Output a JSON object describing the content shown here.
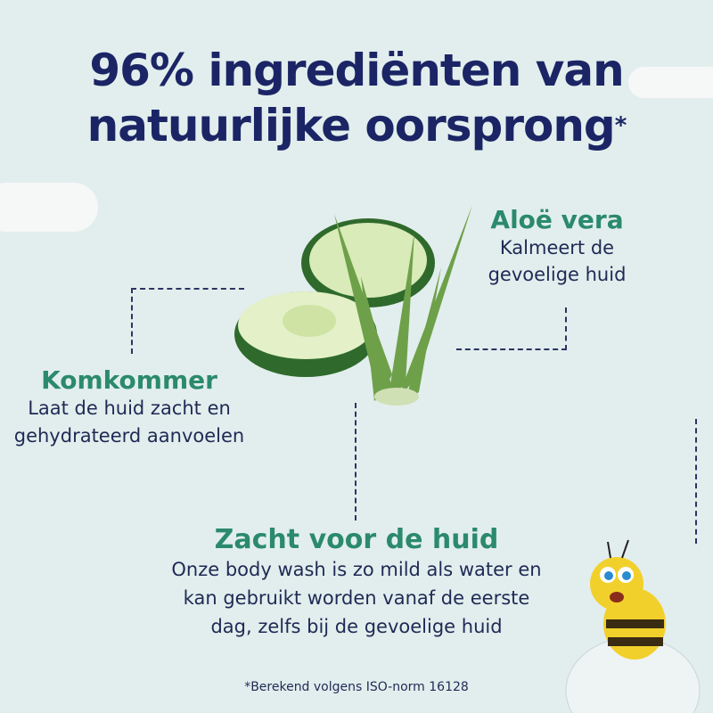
{
  "title": {
    "line1": "96% ingrediënten van",
    "line2": "natuurlijke oorsprong",
    "asterisk": "*"
  },
  "aloe": {
    "heading": "Aloë vera",
    "line1": "Kalmeert de",
    "line2": "gevoelige huid"
  },
  "cucumber": {
    "heading": "Komkommer",
    "line1": "Laat de huid zacht en",
    "line2": "gehydrateerd aanvoelen"
  },
  "gentle": {
    "heading": "Zacht voor de huid",
    "line1": "Onze body wash is zo mild als water en",
    "line2": "kan gebruikt worden vanaf de eerste",
    "line3": "dag, zelfs bij de gevoelige huid"
  },
  "footnote": "*Berekend volgens ISO-norm 16128",
  "colors": {
    "title": "#1b2565",
    "heading": "#2b8a6c",
    "background": "#e2eeed"
  }
}
